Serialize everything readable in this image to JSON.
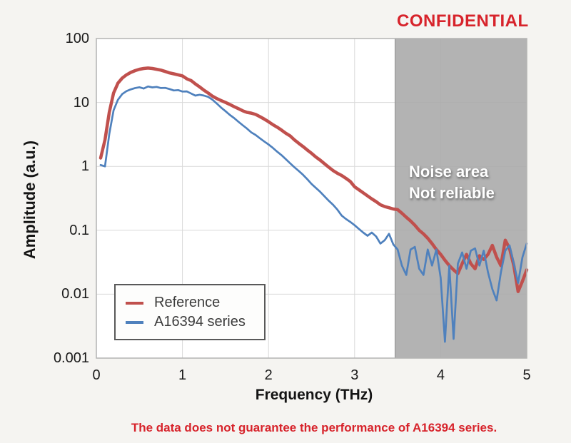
{
  "header": {
    "confidential": "CONFIDENTIAL"
  },
  "caption": {
    "text": "The data does not guarantee the performance of A16394 series."
  },
  "noise": {
    "line1": "Noise area",
    "line2": "Not reliable"
  },
  "colors": {
    "reference": "#c0504d",
    "a16394": "#4f81bd",
    "confidential_red": "#d7232b",
    "noise_fill": "#a9a9a9",
    "gridline": "#d9d9d9",
    "plot_border": "#b3b3b3",
    "plot_background": "#ffffff",
    "page_background": "#f5f4f1"
  },
  "chart_data": {
    "type": "line",
    "title": "",
    "xlabel": "Frequency (THz)",
    "ylabel": "Amplitude (a.u.)",
    "y_scale": "log",
    "xlim": [
      0,
      5
    ],
    "ylim": [
      0.001,
      100
    ],
    "x_ticks": [
      0,
      1,
      2,
      3,
      4,
      5
    ],
    "y_tick_labels": [
      "100",
      "10",
      "1",
      "0.1",
      "0.01",
      "0.001"
    ],
    "y_tick_values": [
      100,
      10,
      1,
      0.1,
      0.01,
      0.001
    ],
    "grid": true,
    "legend_position": "lower-left",
    "noise_area": {
      "x_start": 3.47,
      "x_end": 5,
      "label": "Noise area Not reliable"
    },
    "x": [
      0.05,
      0.1,
      0.15,
      0.2,
      0.25,
      0.3,
      0.35,
      0.4,
      0.45,
      0.5,
      0.55,
      0.6,
      0.65,
      0.7,
      0.75,
      0.8,
      0.85,
      0.9,
      0.95,
      1.0,
      1.05,
      1.1,
      1.15,
      1.2,
      1.25,
      1.3,
      1.35,
      1.4,
      1.45,
      1.5,
      1.55,
      1.6,
      1.65,
      1.7,
      1.75,
      1.8,
      1.85,
      1.9,
      1.95,
      2.0,
      2.05,
      2.1,
      2.15,
      2.2,
      2.25,
      2.3,
      2.35,
      2.4,
      2.45,
      2.5,
      2.55,
      2.6,
      2.65,
      2.7,
      2.75,
      2.8,
      2.85,
      2.9,
      2.95,
      3.0,
      3.05,
      3.1,
      3.15,
      3.2,
      3.25,
      3.3,
      3.35,
      3.4,
      3.45,
      3.5,
      3.55,
      3.6,
      3.65,
      3.7,
      3.75,
      3.8,
      3.85,
      3.9,
      3.95,
      4.0,
      4.05,
      4.1,
      4.15,
      4.2,
      4.25,
      4.3,
      4.35,
      4.4,
      4.45,
      4.5,
      4.55,
      4.6,
      4.65,
      4.7,
      4.75,
      4.8,
      4.85,
      4.9,
      4.95,
      5.0
    ],
    "series": [
      {
        "name": "Reference",
        "color": "#c0504d",
        "line_width": 4.5,
        "values": [
          1.35,
          2.6,
          7,
          14,
          20,
          24,
          27,
          29.5,
          31.5,
          33,
          34,
          34.5,
          34,
          33,
          32,
          30.5,
          29,
          28,
          27,
          26,
          23.5,
          22,
          19.5,
          17.5,
          15.5,
          14,
          12.5,
          11.5,
          10.7,
          10,
          9.3,
          8.6,
          8.0,
          7.4,
          7.0,
          6.8,
          6.5,
          6.0,
          5.5,
          5.0,
          4.5,
          4.1,
          3.7,
          3.3,
          3.0,
          2.6,
          2.3,
          2.05,
          1.8,
          1.6,
          1.4,
          1.25,
          1.1,
          0.97,
          0.86,
          0.78,
          0.72,
          0.65,
          0.58,
          0.48,
          0.43,
          0.385,
          0.345,
          0.31,
          0.28,
          0.25,
          0.235,
          0.225,
          0.215,
          0.21,
          0.185,
          0.16,
          0.14,
          0.12,
          0.1,
          0.088,
          0.075,
          0.062,
          0.05,
          0.042,
          0.034,
          0.028,
          0.024,
          0.021,
          0.03,
          0.042,
          0.03,
          0.025,
          0.04,
          0.035,
          0.042,
          0.058,
          0.038,
          0.028,
          0.07,
          0.052,
          0.028,
          0.011,
          0.016,
          0.024
        ]
      },
      {
        "name": "A16394 series",
        "color": "#4f81bd",
        "line_width": 2.7,
        "values": [
          1.05,
          1.0,
          3.2,
          7.5,
          11,
          13.5,
          15,
          16,
          16.8,
          17.3,
          16.5,
          17.8,
          17.2,
          17.5,
          16.8,
          16.9,
          16.2,
          15.4,
          15.6,
          14.8,
          14.9,
          13.8,
          12.8,
          13.2,
          12.8,
          12.2,
          11.0,
          9.6,
          8.3,
          7.3,
          6.4,
          5.7,
          5.0,
          4.4,
          3.9,
          3.4,
          3.1,
          2.75,
          2.45,
          2.2,
          1.95,
          1.7,
          1.5,
          1.3,
          1.12,
          0.97,
          0.85,
          0.74,
          0.63,
          0.53,
          0.46,
          0.4,
          0.34,
          0.29,
          0.25,
          0.21,
          0.17,
          0.15,
          0.135,
          0.12,
          0.105,
          0.092,
          0.082,
          0.092,
          0.08,
          0.062,
          0.07,
          0.088,
          0.06,
          0.05,
          0.028,
          0.02,
          0.05,
          0.055,
          0.025,
          0.02,
          0.05,
          0.028,
          0.05,
          0.018,
          0.0018,
          0.028,
          0.002,
          0.03,
          0.045,
          0.025,
          0.048,
          0.052,
          0.028,
          0.048,
          0.022,
          0.012,
          0.008,
          0.022,
          0.048,
          0.058,
          0.03,
          0.015,
          0.038,
          0.062
        ]
      }
    ]
  }
}
